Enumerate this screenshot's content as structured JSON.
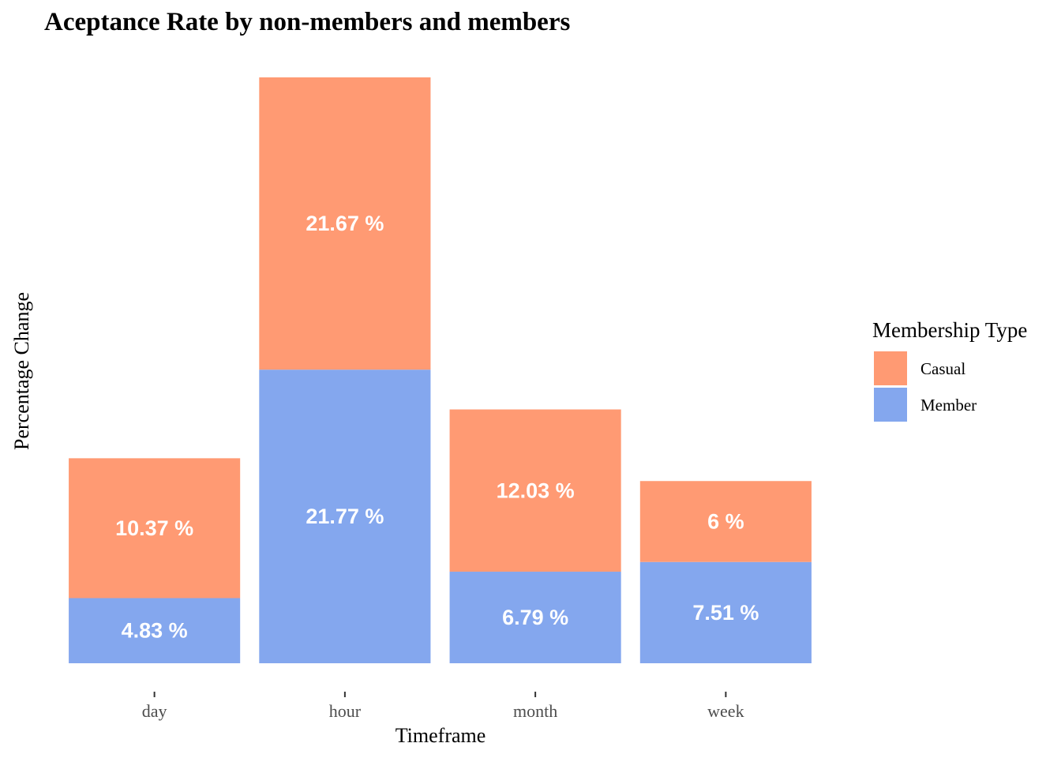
{
  "chart_data": {
    "type": "bar",
    "stacked": true,
    "title": "Aceptance Rate by non-members and members",
    "xlabel": "Timeframe",
    "ylabel": "Percentage Change",
    "categories": [
      "day",
      "hour",
      "month",
      "week"
    ],
    "series": [
      {
        "name": "Casual",
        "color": "#FF9A73",
        "values": [
          10.37,
          21.67,
          12.03,
          6
        ],
        "labels": [
          "10.37 %",
          "21.67 %",
          "12.03 %",
          "6 %"
        ]
      },
      {
        "name": "Member",
        "color": "#84A7EE",
        "values": [
          4.83,
          21.77,
          6.79,
          7.51
        ],
        "labels": [
          "4.83 %",
          "21.77 %",
          "6.79 %",
          "7.51 %"
        ]
      }
    ],
    "ylim": [
      0,
      43.44
    ],
    "grid": false,
    "legend": {
      "title": "Membership Type",
      "placement": "right"
    }
  }
}
